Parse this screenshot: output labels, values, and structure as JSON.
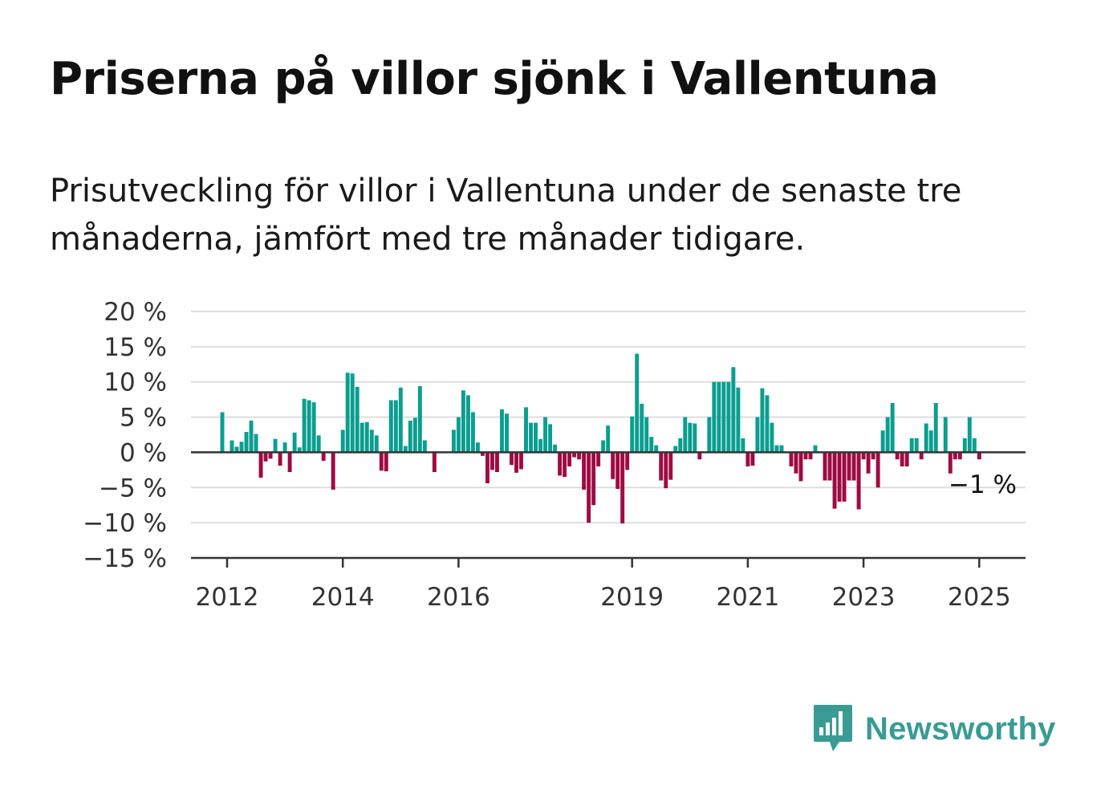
{
  "title": "Priserna på villor sjönk i Vallentuna",
  "subtitle": "Prisutveckling för villor i Vallentuna under de senaste tre månaderna, jämfört med tre månader tidigare.",
  "brand": {
    "name": "Newsworthy",
    "icon": "bar-chart-speech-bubble-icon",
    "color": "#3a9b94"
  },
  "chart_data": {
    "type": "bar",
    "colors": {
      "positive": "#0a9e8f",
      "negative": "#9e0b43",
      "grid": "#dddddd",
      "axis": "#333333"
    },
    "ylim": [
      -15,
      20
    ],
    "y_ticks": [
      {
        "value": 20,
        "label": "20 %"
      },
      {
        "value": 15,
        "label": "15 %"
      },
      {
        "value": 10,
        "label": "10 %"
      },
      {
        "value": 5,
        "label": "5 %"
      },
      {
        "value": 0,
        "label": "0 %"
      },
      {
        "value": -5,
        "label": "−5 %"
      },
      {
        "value": -10,
        "label": "−10 %"
      },
      {
        "value": -15,
        "label": "−15 %"
      }
    ],
    "x_ticks": [
      "2012",
      "2014",
      "2016",
      "2019",
      "2021",
      "2023",
      "2025"
    ],
    "x_start": "2011-11",
    "frequency": "monthly",
    "values": [
      0,
      5.7,
      0,
      1.7,
      0.8,
      1.5,
      2.9,
      4.5,
      2.6,
      -3.6,
      -1.3,
      -0.9,
      1.9,
      -1.9,
      1.4,
      -2.8,
      2.8,
      0.7,
      7.6,
      7.4,
      7.1,
      2.4,
      -1.2,
      0,
      -5.3,
      0,
      3.2,
      11.3,
      11.2,
      9.3,
      4.2,
      4.3,
      3.2,
      2.4,
      -2.6,
      -2.7,
      7.4,
      7.4,
      9.2,
      0.9,
      4.5,
      4.9,
      9.4,
      1.7,
      0,
      -2.8,
      0,
      0,
      0,
      3.2,
      5.0,
      8.8,
      8.1,
      5.7,
      1.4,
      -0.5,
      -4.4,
      -2.5,
      -2.8,
      6.1,
      5.5,
      -1.8,
      -2.9,
      -2.4,
      6.4,
      4.2,
      4.2,
      1.9,
      5.0,
      4.0,
      1.1,
      -3.3,
      -3.5,
      -2.0,
      -0.7,
      -1.0,
      -5.3,
      -10.0,
      -7.5,
      -2.0,
      1.7,
      3.8,
      -3.8,
      -5.2,
      -10.1,
      -2.5,
      5.1,
      14.0,
      6.9,
      5.0,
      2.2,
      1.0,
      -4.0,
      -5.1,
      -3.9,
      0.9,
      2.0,
      5.0,
      4.2,
      4.1,
      -1.0,
      0,
      5.0,
      10.0,
      10.0,
      10.0,
      10.0,
      12.1,
      9.2,
      2.0,
      -2.0,
      -1.9,
      5.0,
      9.1,
      8.1,
      4.2,
      1.0,
      1.0,
      0,
      -2.0,
      -3.0,
      -4.1,
      -1.0,
      -1.0,
      1.0,
      0,
      -4.0,
      -4.0,
      -8.0,
      -7.0,
      -7.0,
      -4.0,
      -4.0,
      -8.1,
      -1.0,
      -3.0,
      -1.0,
      -5.0,
      3.1,
      5.0,
      7.0,
      -1.0,
      -2.0,
      -2.0,
      2.0,
      2.0,
      -1.0,
      4.1,
      3.1,
      7.0,
      0,
      5.0,
      -3.0,
      -1.0,
      -1.0,
      2.0,
      5.0,
      2.0,
      -1.0
    ],
    "last_value_label": "−1 %"
  }
}
